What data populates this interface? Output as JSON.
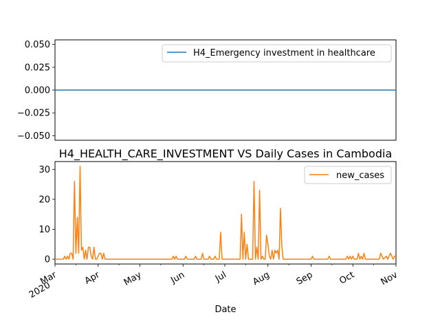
{
  "chart_data": [
    {
      "type": "line",
      "title": "",
      "xlabel": "",
      "ylabel": "",
      "ylim": [
        -0.055,
        0.055
      ],
      "yticks": [
        "0.050",
        "0.025",
        "0.000",
        "−0.025",
        "−0.050"
      ],
      "ytick_values": [
        0.05,
        0.025,
        0.0,
        -0.025,
        -0.05
      ],
      "legend": "top-right",
      "grid": false,
      "series": [
        {
          "name": "H4_Emergency investment in healthcare",
          "color": "#1f77b4",
          "x": [
            "2020-03-01",
            "2020-11-01"
          ],
          "y": [
            0,
            0
          ]
        }
      ]
    },
    {
      "type": "line",
      "title": "H4_HEALTH_CARE_INVESTMENT VS Daily Cases in Cambodia",
      "xlabel": "Date",
      "ylabel": "",
      "xlim": [
        "2020-03-01",
        "2020-11-01"
      ],
      "ylim": [
        -1.6,
        32.6
      ],
      "yticks": [
        "0",
        "10",
        "20",
        "30"
      ],
      "ytick_values": [
        0,
        10,
        20,
        30
      ],
      "xticks": [
        {
          "date": "2020-03-01",
          "label": "Mar",
          "sublabel": "2020"
        },
        {
          "date": "2020-04-01",
          "label": "Apr",
          "sublabel": ""
        },
        {
          "date": "2020-05-01",
          "label": "May",
          "sublabel": ""
        },
        {
          "date": "2020-06-01",
          "label": "Jun",
          "sublabel": ""
        },
        {
          "date": "2020-07-01",
          "label": "Jul",
          "sublabel": ""
        },
        {
          "date": "2020-08-01",
          "label": "Aug",
          "sublabel": ""
        },
        {
          "date": "2020-09-01",
          "label": "Sep",
          "sublabel": ""
        },
        {
          "date": "2020-10-01",
          "label": "Oct",
          "sublabel": ""
        },
        {
          "date": "2020-11-01",
          "label": "Nov",
          "sublabel": ""
        }
      ],
      "legend": "top-right",
      "grid": false,
      "series": [
        {
          "name": "new_cases",
          "color": "#ff7f0e",
          "points": [
            [
              "2020-03-01",
              0
            ],
            [
              "2020-03-07",
              0
            ],
            [
              "2020-03-08",
              1
            ],
            [
              "2020-03-09",
              0
            ],
            [
              "2020-03-10",
              1
            ],
            [
              "2020-03-11",
              0
            ],
            [
              "2020-03-12",
              2
            ],
            [
              "2020-03-13",
              2
            ],
            [
              "2020-03-14",
              0
            ],
            [
              "2020-03-15",
              26
            ],
            [
              "2020-03-16",
              2
            ],
            [
              "2020-03-17",
              14
            ],
            [
              "2020-03-18",
              2
            ],
            [
              "2020-03-19",
              31
            ],
            [
              "2020-03-20",
              3
            ],
            [
              "2020-03-21",
              4
            ],
            [
              "2020-03-22",
              0
            ],
            [
              "2020-03-23",
              3
            ],
            [
              "2020-03-24",
              0
            ],
            [
              "2020-03-25",
              4
            ],
            [
              "2020-03-26",
              4
            ],
            [
              "2020-03-27",
              1
            ],
            [
              "2020-03-28",
              0
            ],
            [
              "2020-03-29",
              4
            ],
            [
              "2020-03-30",
              0
            ],
            [
              "2020-03-31",
              0
            ],
            [
              "2020-04-01",
              1
            ],
            [
              "2020-04-02",
              2
            ],
            [
              "2020-04-03",
              2
            ],
            [
              "2020-04-04",
              0
            ],
            [
              "2020-04-05",
              2
            ],
            [
              "2020-04-06",
              0
            ],
            [
              "2020-05-24",
              0
            ],
            [
              "2020-05-25",
              1
            ],
            [
              "2020-05-26",
              0
            ],
            [
              "2020-05-27",
              1
            ],
            [
              "2020-05-28",
              0
            ],
            [
              "2020-06-02",
              0
            ],
            [
              "2020-06-03",
              1
            ],
            [
              "2020-06-04",
              0
            ],
            [
              "2020-06-09",
              0
            ],
            [
              "2020-06-10",
              1
            ],
            [
              "2020-06-11",
              0
            ],
            [
              "2020-06-14",
              0
            ],
            [
              "2020-06-15",
              2
            ],
            [
              "2020-06-16",
              0
            ],
            [
              "2020-06-19",
              0
            ],
            [
              "2020-06-20",
              1
            ],
            [
              "2020-06-21",
              0
            ],
            [
              "2020-06-23",
              0
            ],
            [
              "2020-06-24",
              1
            ],
            [
              "2020-06-25",
              0
            ],
            [
              "2020-06-27",
              0
            ],
            [
              "2020-06-28",
              9
            ],
            [
              "2020-06-29",
              0
            ],
            [
              "2020-07-12",
              0
            ],
            [
              "2020-07-13",
              15
            ],
            [
              "2020-07-14",
              0
            ],
            [
              "2020-07-15",
              9
            ],
            [
              "2020-07-16",
              0
            ],
            [
              "2020-07-17",
              5
            ],
            [
              "2020-07-18",
              0
            ],
            [
              "2020-07-21",
              0
            ],
            [
              "2020-07-22",
              26
            ],
            [
              "2020-07-23",
              0
            ],
            [
              "2020-07-24",
              4
            ],
            [
              "2020-07-25",
              0
            ],
            [
              "2020-07-26",
              23
            ],
            [
              "2020-07-27",
              0
            ],
            [
              "2020-07-28",
              1
            ],
            [
              "2020-07-29",
              0
            ],
            [
              "2020-07-30",
              0
            ],
            [
              "2020-07-31",
              8
            ],
            [
              "2020-08-01",
              5
            ],
            [
              "2020-08-02",
              1
            ],
            [
              "2020-08-03",
              0
            ],
            [
              "2020-08-04",
              3
            ],
            [
              "2020-08-05",
              0
            ],
            [
              "2020-08-06",
              3
            ],
            [
              "2020-08-07",
              2
            ],
            [
              "2020-08-08",
              3
            ],
            [
              "2020-08-09",
              0
            ],
            [
              "2020-08-10",
              17
            ],
            [
              "2020-08-11",
              4
            ],
            [
              "2020-08-12",
              0
            ],
            [
              "2020-09-01",
              0
            ],
            [
              "2020-09-02",
              1
            ],
            [
              "2020-09-03",
              0
            ],
            [
              "2020-09-13",
              0
            ],
            [
              "2020-09-14",
              1
            ],
            [
              "2020-09-15",
              0
            ],
            [
              "2020-09-26",
              0
            ],
            [
              "2020-09-27",
              1
            ],
            [
              "2020-09-28",
              0
            ],
            [
              "2020-09-29",
              1
            ],
            [
              "2020-09-30",
              0
            ],
            [
              "2020-10-01",
              1
            ],
            [
              "2020-10-02",
              0
            ],
            [
              "2020-10-04",
              0
            ],
            [
              "2020-10-05",
              2
            ],
            [
              "2020-10-06",
              0
            ],
            [
              "2020-10-07",
              1
            ],
            [
              "2020-10-08",
              0
            ],
            [
              "2020-10-09",
              2
            ],
            [
              "2020-10-10",
              0
            ],
            [
              "2020-10-20",
              0
            ],
            [
              "2020-10-21",
              2
            ],
            [
              "2020-10-22",
              1
            ],
            [
              "2020-10-23",
              0
            ],
            [
              "2020-10-25",
              1
            ],
            [
              "2020-10-26",
              0
            ],
            [
              "2020-10-28",
              2
            ],
            [
              "2020-10-29",
              1
            ],
            [
              "2020-10-30",
              0
            ],
            [
              "2020-10-31",
              1
            ],
            [
              "2020-11-01",
              1
            ]
          ]
        }
      ]
    }
  ]
}
